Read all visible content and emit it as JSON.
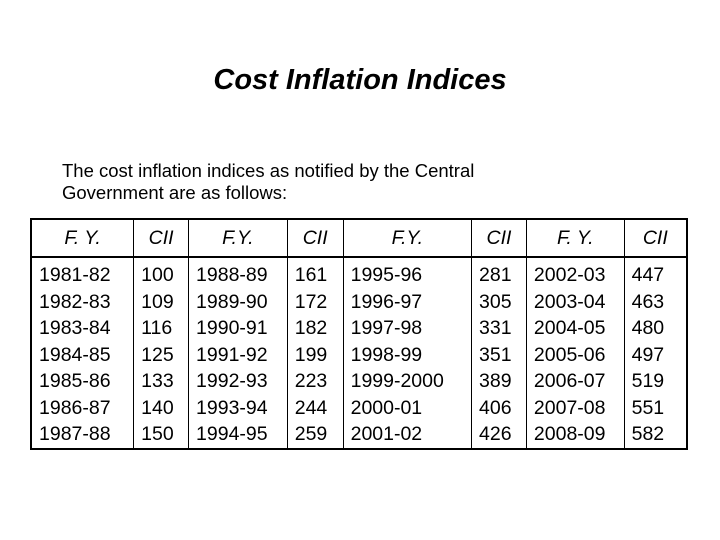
{
  "header": {
    "title": "Cost Inflation Indices"
  },
  "intro": "The cost inflation indices as notified by the Central Government are as follows:",
  "table": {
    "columns": [
      "F. Y.",
      "CII",
      "F.Y.",
      "CII",
      "F.Y.",
      "CII",
      "F. Y.",
      "CII"
    ],
    "rows": [
      [
        "1981-82",
        100,
        "1988-89",
        161,
        "1995-96",
        281,
        "2002-03",
        447
      ],
      [
        "1982-83",
        109,
        "1989-90",
        172,
        "1996-97",
        305,
        "2003-04",
        463
      ],
      [
        "1983-84",
        116,
        "1990-91",
        182,
        "1997-98",
        331,
        "2004-05",
        480
      ],
      [
        "1984-85",
        125,
        "1991-92",
        199,
        "1998-99",
        351,
        "2005-06",
        497
      ],
      [
        "1985-86",
        133,
        "1992-93",
        223,
        "1999-2000",
        389,
        "2006-07",
        519
      ],
      [
        "1986-87",
        140,
        "1993-94",
        244,
        "2000-01",
        406,
        "2007-08",
        551
      ],
      [
        "1987-88",
        150,
        "1994-95",
        259,
        "2001-02",
        426,
        "2008-09",
        582
      ]
    ]
  }
}
